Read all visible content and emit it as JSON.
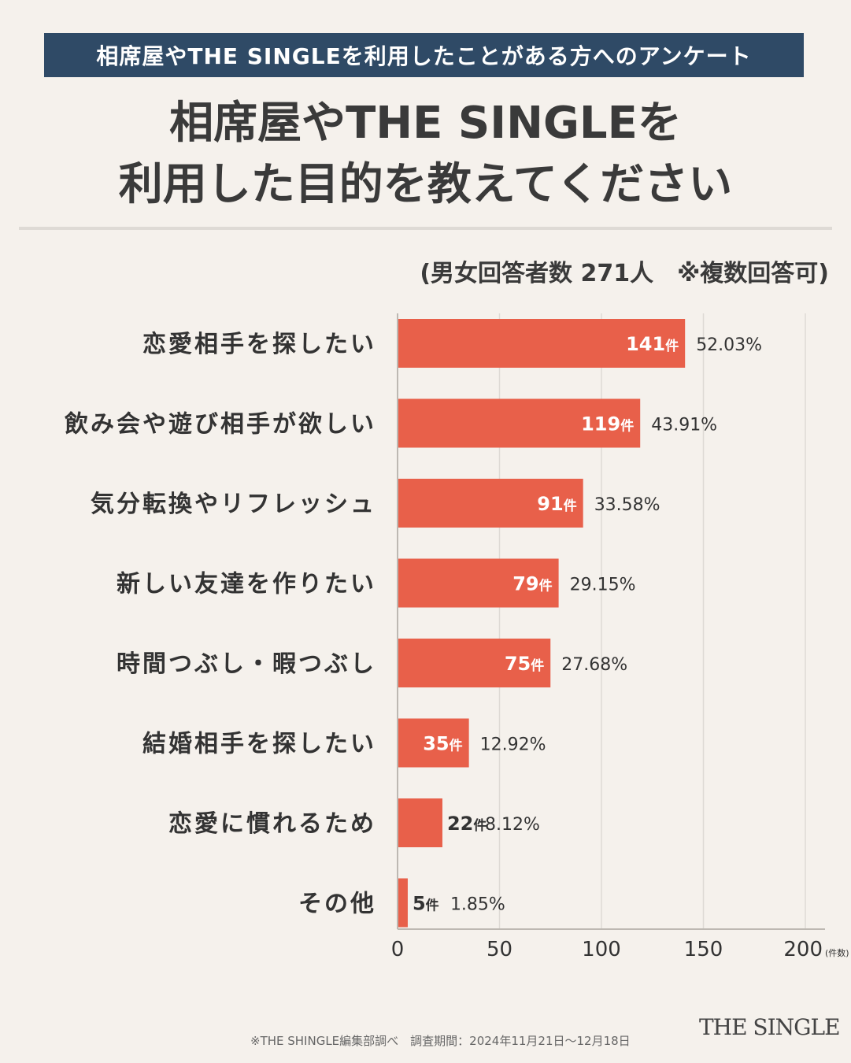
{
  "header": {
    "banner": "相席屋やTHE SINGLEを利用したことがある方へのアンケート",
    "title_line1": "相席屋やTHE SINGLEを",
    "title_line2": "利用した目的を教えてください",
    "note": "(男女回答者数 271人　※複数回答可)"
  },
  "chart_data": {
    "type": "bar",
    "orientation": "horizontal",
    "categories": [
      "恋愛相手を探したい",
      "飲み会や遊び相手が欲しい",
      "気分転換やリフレッシュ",
      "新しい友達を作りたい",
      "時間つぶし・暇つぶし",
      "結婚相手を探したい",
      "恋愛に慣れるため",
      "その他"
    ],
    "values": [
      141,
      119,
      91,
      79,
      75,
      35,
      22,
      5
    ],
    "value_unit": "件",
    "percent_labels": [
      "52.03%",
      "43.91%",
      "33.58%",
      "29.15%",
      "27.68%",
      "12.92%",
      "8.12%",
      "1.85%"
    ],
    "xlim": [
      0,
      200
    ],
    "xticks": [
      0,
      50,
      100,
      150,
      200
    ],
    "x_unit_label": "(件数)",
    "grid": true,
    "bar_color": "#e8604a",
    "legend": "none"
  },
  "footer": {
    "source": "※THE SHINGLE編集部調べ　調査期間：2024年11月21日〜12月18日",
    "brand": "THE SINGLE"
  }
}
